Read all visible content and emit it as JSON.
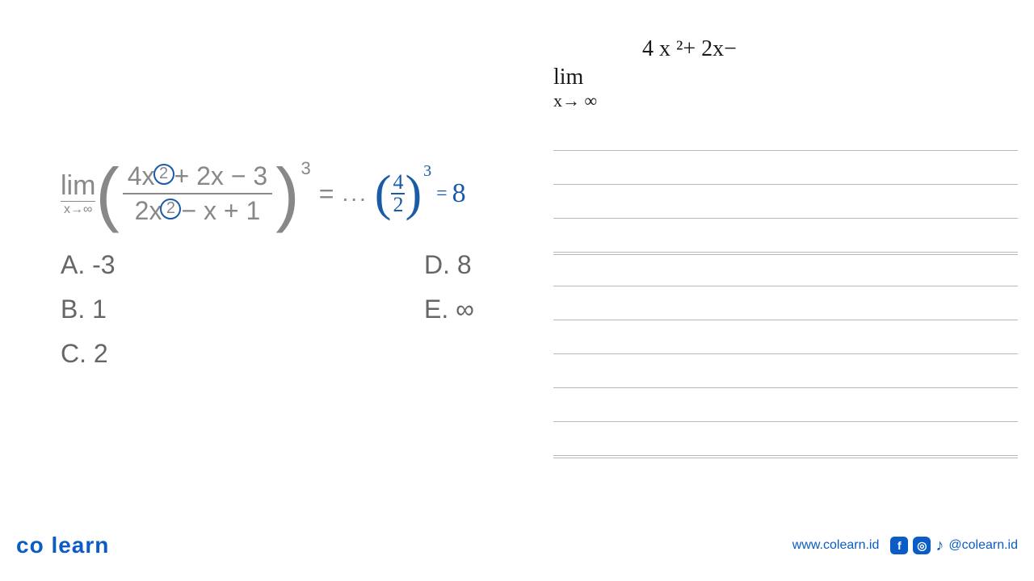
{
  "problem": {
    "lim_text": "lim",
    "lim_sub": "x→∞",
    "numerator_pre": "4x",
    "numerator_circled": "2",
    "numerator_post": "+ 2x − 3",
    "denominator_pre": "2x",
    "denominator_circled": "2",
    "denominator_post": "− x + 1",
    "exponent": "3",
    "equals": "=",
    "dots": "...",
    "hw_frac_num": "4",
    "hw_frac_den": "2",
    "hw_exp": "3",
    "hw_eq": "=",
    "hw_answer": "8"
  },
  "options": {
    "A": "A. -3",
    "B": "B. 1",
    "C": "C. 2",
    "D": "D. 8",
    "E": "E. ∞"
  },
  "notes": {
    "numerator_part": "4 x ²+ 2x−",
    "lim": "lim",
    "lim_sub": "x→ ∞"
  },
  "footer": {
    "logo": "co learn",
    "website": "www.colearn.id",
    "handle": "@colearn.id",
    "fb": "f",
    "ig": "◎",
    "tiktok": "♪"
  },
  "colors": {
    "text_gray": "#888888",
    "text_darker_gray": "#666666",
    "handwritten_blue": "#1a5ba8",
    "handwritten_black": "#1a1a1a",
    "brand_blue": "#0b5cc4",
    "line_gray": "#b8b8b8",
    "background": "#ffffff"
  }
}
